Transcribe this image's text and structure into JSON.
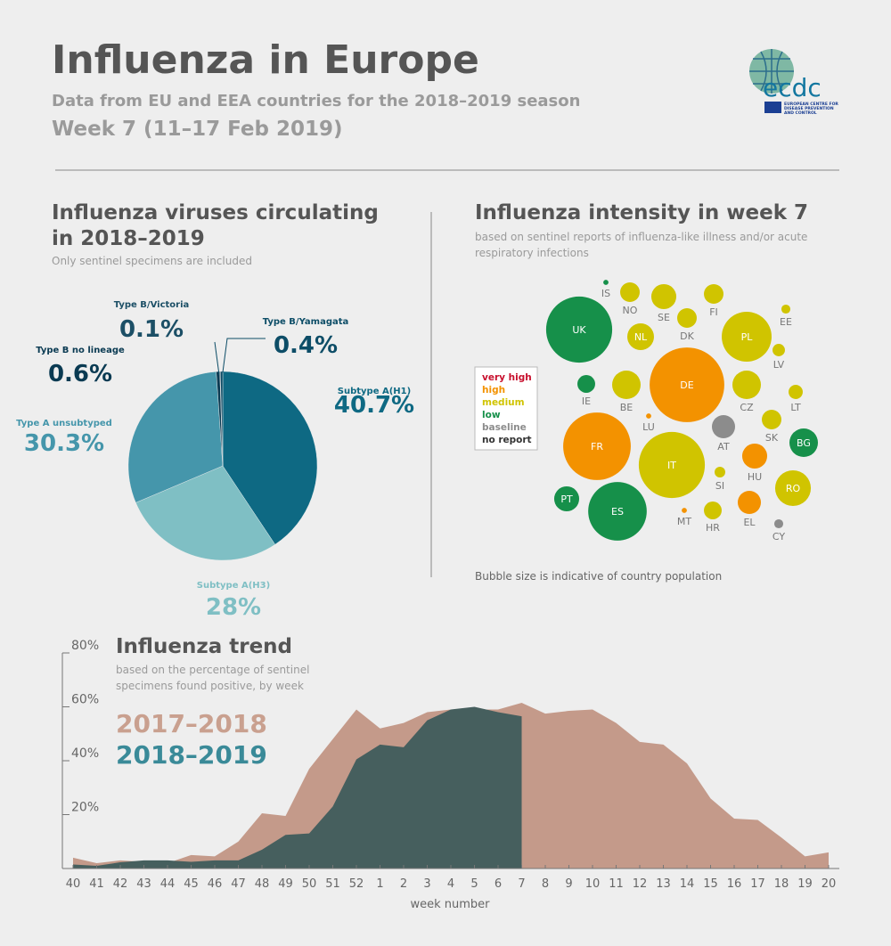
{
  "header": {
    "title": "Influenza in Europe",
    "subtitle": "Data from EU and EEA countries for the 2018–2019 season",
    "week": "Week 7 (11–17 Feb 2019)",
    "logo": "ecdc",
    "logo_caption": [
      "EUROPEAN CENTRE FOR",
      "DISEASE PREVENTION",
      "AND CONTROL"
    ]
  },
  "chart_data": [
    {
      "type": "pie",
      "title": [
        "Influenza viruses circulating",
        "in 2018–2019"
      ],
      "subtitle": "Only sentinel specimens are included",
      "categories": [
        "Subtype A(H1)",
        "Subtype A(H3)",
        "Type A unsubtyped",
        "Type B no lineage",
        "Type B/Victoria",
        "Type B/Yamagata"
      ],
      "values": [
        40.7,
        28,
        30.3,
        0.6,
        0.1,
        0.4
      ],
      "value_labels": [
        "40.7%",
        "28%",
        "30.3%",
        "0.6%",
        "0.1%",
        "0.4%"
      ],
      "colors": [
        "#0e6983",
        "#7fbfc4",
        "#4596ab",
        "#0a3a52",
        "#1c4f66",
        "#0d4d67"
      ]
    },
    {
      "type": "bubble",
      "title": "Influenza intensity in week 7",
      "subtitle": [
        "based on sentinel reports of influenza-like illness and/or acute",
        "respiratory infections"
      ],
      "note": "Bubble size is indicative of country population",
      "legend": [
        "very high",
        "high",
        "medium",
        "low",
        "baseline",
        "no report"
      ],
      "legend_colors": [
        "#c8102e",
        "#f39200",
        "#d0c400",
        "#16904a",
        "#8c8c8c",
        "#333333"
      ],
      "countries": [
        "IS",
        "NO",
        "SE",
        "FI",
        "EE",
        "UK",
        "DK",
        "NL",
        "PL",
        "LV",
        "IE",
        "BE",
        "DE",
        "CZ",
        "LT",
        "LU",
        "AT",
        "SK",
        "BG",
        "FR",
        "IT",
        "HU",
        "SI",
        "RO",
        "PT",
        "ES",
        "MT",
        "HR",
        "EL",
        "CY"
      ],
      "levels": [
        "low",
        "medium",
        "medium",
        "medium",
        "medium",
        "low",
        "medium",
        "medium",
        "medium",
        "medium",
        "low",
        "medium",
        "high",
        "medium",
        "medium",
        "high",
        "baseline",
        "medium",
        "low",
        "high",
        "medium",
        "high",
        "medium",
        "medium",
        "low",
        "low",
        "high",
        "medium",
        "high",
        "baseline"
      ],
      "sizes": [
        0.4,
        5.7,
        9.3,
        5.7,
        1.2,
        65,
        5.7,
        10.6,
        37,
        2.3,
        4.7,
        12.1,
        83,
        12.1,
        3,
        0.4,
        8,
        5.7,
        12.1,
        68,
        65,
        9.3,
        1.7,
        19,
        9.3,
        51,
        0.4,
        4.7,
        8,
        1.2
      ]
    },
    {
      "type": "area",
      "title": "Influenza trend",
      "subtitle": [
        "based on the percentage of sentinel",
        "specimens found positive, by week"
      ],
      "xlabel": "week number",
      "categories": [
        "40",
        "41",
        "42",
        "43",
        "44",
        "45",
        "46",
        "47",
        "48",
        "49",
        "50",
        "51",
        "52",
        "1",
        "2",
        "3",
        "4",
        "5",
        "6",
        "7",
        "8",
        "9",
        "10",
        "11",
        "12",
        "13",
        "14",
        "15",
        "16",
        "17",
        "18",
        "19",
        "20"
      ],
      "ylim": [
        0,
        80
      ],
      "yticks": [
        {
          "value": 20,
          "label": "20%"
        },
        {
          "value": 40,
          "label": "40%"
        },
        {
          "value": 60,
          "label": "60%"
        },
        {
          "value": 80,
          "label": "80%"
        }
      ],
      "series": [
        {
          "name": "2017–2018",
          "color": "#c49a8a",
          "label_color": "#c9a08f",
          "values": [
            4,
            2,
            3,
            2.5,
            2,
            5,
            4.5,
            10,
            20.5,
            19.5,
            37,
            48,
            59,
            52,
            54,
            58,
            59,
            59,
            59,
            61.5,
            57.5,
            58.5,
            59,
            54,
            47,
            46,
            39,
            26,
            18.5,
            18,
            11.5,
            4.5,
            6
          ]
        },
        {
          "name": "2018–2019",
          "color": "#465f5e",
          "label_color": "#3a8a98",
          "values": [
            1.5,
            1,
            2.3,
            3,
            3,
            2.5,
            3,
            3,
            7,
            12.5,
            13,
            23,
            40.5,
            46,
            45,
            55,
            59,
            60,
            58,
            56.5,
            null,
            null,
            null,
            null,
            null,
            null,
            null,
            null,
            null,
            null,
            null,
            null,
            null
          ]
        }
      ]
    }
  ]
}
